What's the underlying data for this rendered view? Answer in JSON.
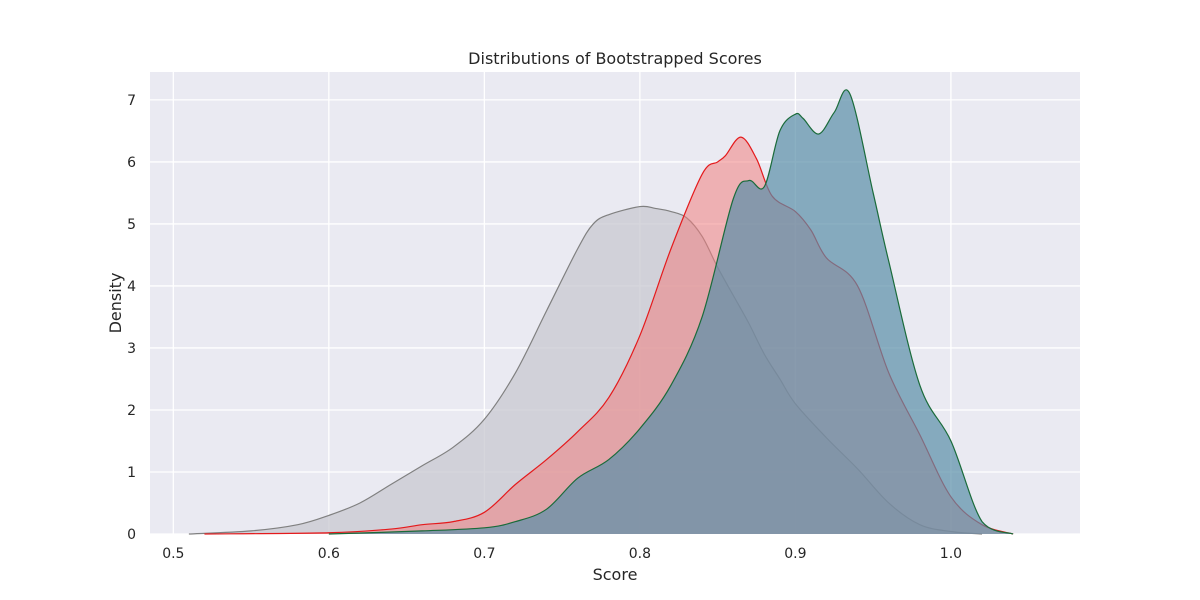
{
  "chart_data": {
    "type": "area",
    "title": "Distributions of Bootstrapped Scores",
    "xlabel": "Score",
    "ylabel": "Density",
    "xlim": [
      0.485,
      1.083
    ],
    "ylim": [
      0,
      7.45
    ],
    "xticks": [
      "0.5",
      "0.6",
      "0.7",
      "0.8",
      "0.9",
      "1.0"
    ],
    "xtick_values": [
      0.5,
      0.6,
      0.7,
      0.8,
      0.9,
      1.0
    ],
    "yticks": [
      "0",
      "1",
      "2",
      "3",
      "4",
      "5",
      "6",
      "7"
    ],
    "ytick_values": [
      0,
      1,
      2,
      3,
      4,
      5,
      6,
      7
    ],
    "grid": true,
    "legend": "none",
    "background_color": "#eaeaf2",
    "series": [
      {
        "color": "#808080",
        "fill": "#c8c8d0",
        "fill_opacity": 0.75,
        "x": [
          0.51,
          0.55,
          0.58,
          0.6,
          0.62,
          0.64,
          0.66,
          0.68,
          0.7,
          0.72,
          0.74,
          0.76,
          0.77,
          0.78,
          0.8,
          0.81,
          0.82,
          0.83,
          0.84,
          0.85,
          0.86,
          0.87,
          0.88,
          0.89,
          0.9,
          0.92,
          0.94,
          0.96,
          0.98,
          1.0,
          1.02
        ],
        "y": [
          0.0,
          0.05,
          0.15,
          0.3,
          0.5,
          0.8,
          1.1,
          1.4,
          1.85,
          2.6,
          3.6,
          4.6,
          5.0,
          5.15,
          5.28,
          5.25,
          5.2,
          5.1,
          4.8,
          4.3,
          3.85,
          3.4,
          2.9,
          2.5,
          2.1,
          1.55,
          1.05,
          0.5,
          0.15,
          0.04,
          0.0
        ]
      },
      {
        "color": "#e41a1c",
        "fill": "#f08080",
        "fill_opacity": 0.55,
        "x": [
          0.52,
          0.6,
          0.64,
          0.66,
          0.68,
          0.7,
          0.72,
          0.74,
          0.76,
          0.78,
          0.8,
          0.82,
          0.84,
          0.85,
          0.855,
          0.865,
          0.875,
          0.885,
          0.9,
          0.91,
          0.92,
          0.94,
          0.96,
          0.98,
          1.0,
          1.02,
          1.04
        ],
        "y": [
          0.0,
          0.02,
          0.08,
          0.15,
          0.2,
          0.35,
          0.8,
          1.2,
          1.65,
          2.2,
          3.2,
          4.6,
          5.8,
          6.0,
          6.1,
          6.4,
          6.05,
          5.45,
          5.2,
          4.9,
          4.45,
          4.0,
          2.6,
          1.6,
          0.6,
          0.15,
          0.0
        ]
      },
      {
        "color": "#1a6b3a",
        "fill": "#5a8fa8",
        "fill_opacity": 0.7,
        "x": [
          0.6,
          0.66,
          0.7,
          0.72,
          0.74,
          0.76,
          0.78,
          0.8,
          0.82,
          0.84,
          0.86,
          0.87,
          0.88,
          0.89,
          0.9,
          0.905,
          0.915,
          0.925,
          0.935,
          0.95,
          0.96,
          0.98,
          1.0,
          1.02,
          1.04
        ],
        "y": [
          0.0,
          0.05,
          0.1,
          0.2,
          0.4,
          0.9,
          1.2,
          1.7,
          2.4,
          3.5,
          5.4,
          5.7,
          5.6,
          6.5,
          6.77,
          6.7,
          6.45,
          6.8,
          7.1,
          5.5,
          4.4,
          2.4,
          1.5,
          0.2,
          0.0
        ]
      }
    ]
  }
}
